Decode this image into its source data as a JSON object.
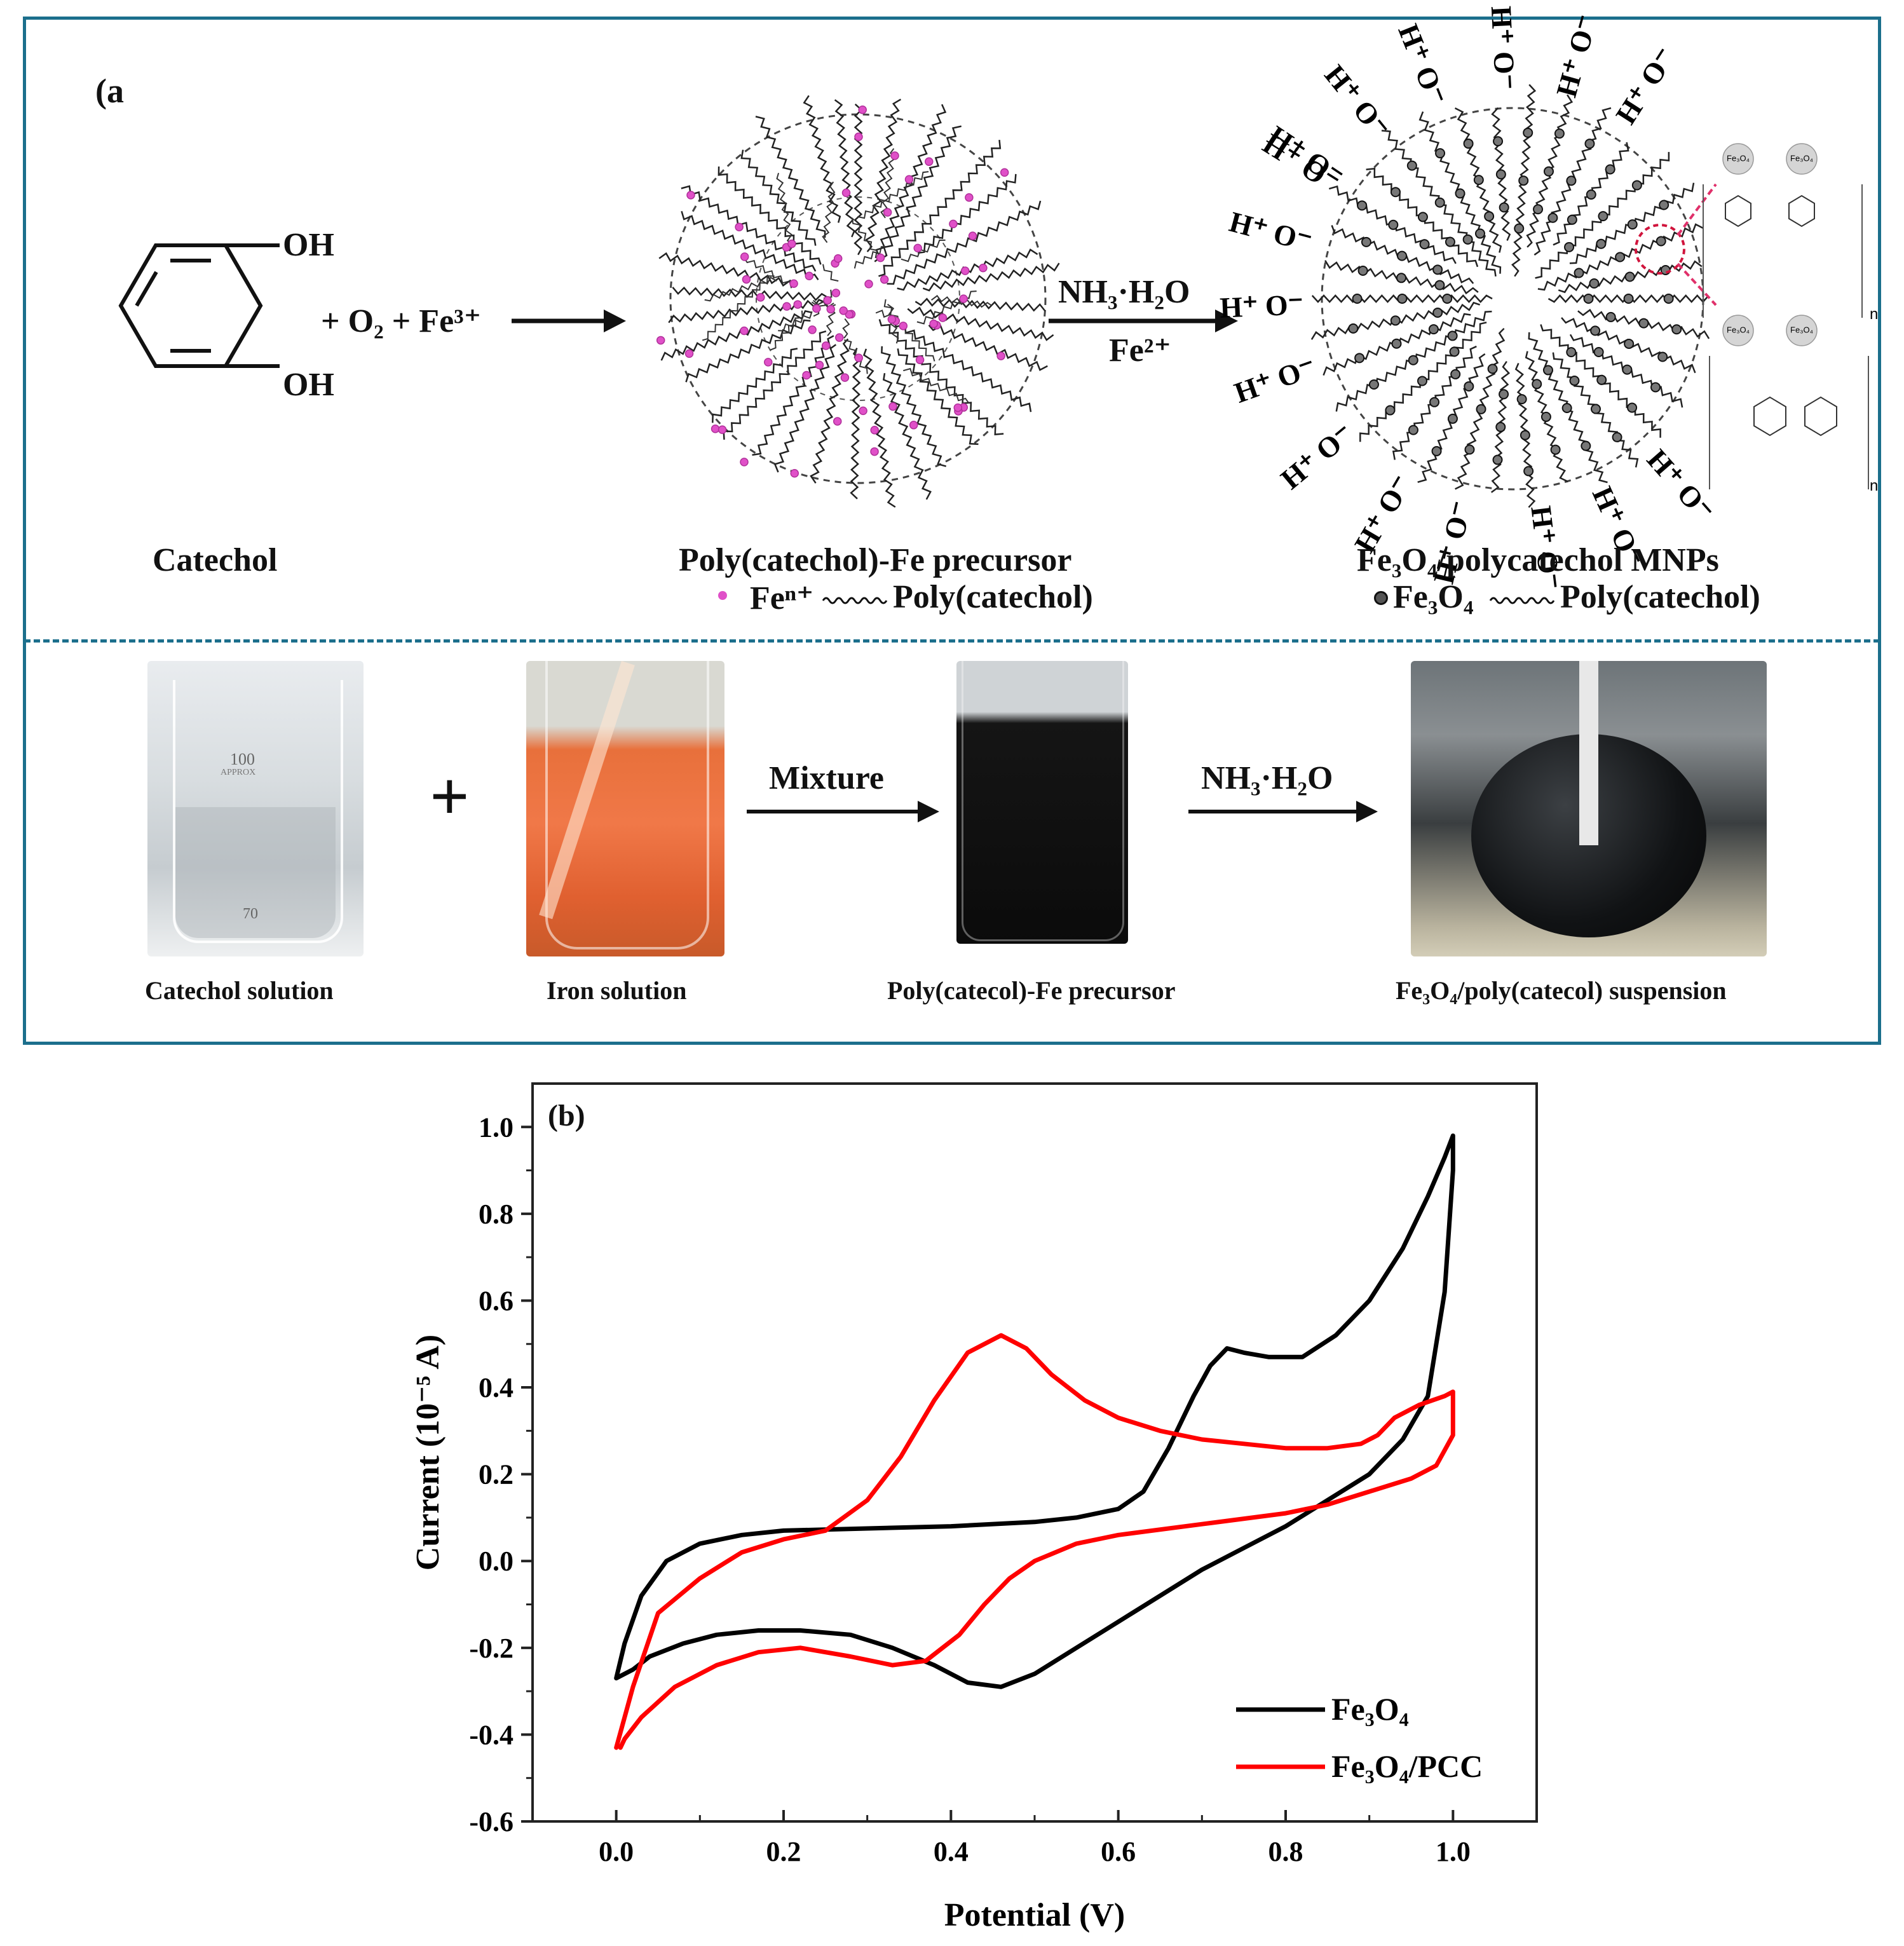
{
  "panel_a": {
    "label": "(a",
    "catechol_oh_top": "OH",
    "catechol_oh_bottom": "OH",
    "reagents": "+ O₂ + Fe³⁺",
    "catechol_name": "Catechol",
    "precursor_name": "Poly(catechol)-Fe precursor",
    "precursor_legend_fe": "Feⁿ⁺",
    "precursor_legend_poly": "Poly(catechol)",
    "arrow2_top": "NH₃·H₂O",
    "arrow2_bottom": "Fe²⁺",
    "mnp_name": "Fe₃O₄/polycatechol MNPs",
    "mnp_legend_fe3o4": "Fe₃O₄",
    "mnp_legend_poly": "Poly(catechol)",
    "surface_group": "H⁺ O⁻",
    "fe3o4_bead_label": "Fe₃O₄",
    "repeat_n": "n",
    "photos": {
      "plus": "+",
      "arrow1": "Mixture",
      "arrow2": "NH₃·H₂O",
      "beaker_marks": [
        "100",
        "APPROX",
        "70"
      ],
      "captions": [
        "Catechol solution",
        "Iron solution",
        "Poly(catecol)-Fe precursor",
        "Fe₃O₄/poly(catecol) suspension"
      ]
    }
  },
  "panel_b": {
    "label": "(b)"
  },
  "colors": {
    "frame": "#1c6f8c",
    "fe_ion": "#e050c8",
    "fe3o4": "#000000",
    "fe3o4_pcc": "#ff0000"
  },
  "chart_data": {
    "type": "line",
    "title": "",
    "xlabel": "Potential (V)",
    "ylabel": "Current (10⁻⁵ A)",
    "xlim": [
      -0.1,
      1.1
    ],
    "ylim": [
      -0.6,
      1.1
    ],
    "xticks": [
      "0.0",
      "0.2",
      "0.4",
      "0.6",
      "0.8",
      "1.0"
    ],
    "yticks": [
      "-0.6",
      "-0.4",
      "-0.2",
      "0.0",
      "0.2",
      "0.4",
      "0.6",
      "0.8",
      "1.0"
    ],
    "legend_position": "bottom-right",
    "series": [
      {
        "name": "Fe₃O₄",
        "color": "#000000",
        "x": [
          0.0,
          0.01,
          0.03,
          0.06,
          0.1,
          0.15,
          0.2,
          0.3,
          0.4,
          0.5,
          0.55,
          0.6,
          0.63,
          0.66,
          0.69,
          0.71,
          0.73,
          0.75,
          0.78,
          0.82,
          0.86,
          0.9,
          0.94,
          0.97,
          0.99,
          1.0,
          1.0,
          0.99,
          0.97,
          0.94,
          0.9,
          0.85,
          0.8,
          0.75,
          0.7,
          0.65,
          0.6,
          0.55,
          0.5,
          0.46,
          0.42,
          0.38,
          0.33,
          0.28,
          0.22,
          0.17,
          0.12,
          0.08,
          0.04,
          0.02,
          0.0
        ],
        "y": [
          -0.27,
          -0.19,
          -0.08,
          0.0,
          0.04,
          0.06,
          0.07,
          0.075,
          0.08,
          0.09,
          0.1,
          0.12,
          0.16,
          0.26,
          0.38,
          0.45,
          0.49,
          0.48,
          0.47,
          0.47,
          0.52,
          0.6,
          0.72,
          0.84,
          0.93,
          0.98,
          0.9,
          0.62,
          0.38,
          0.28,
          0.2,
          0.14,
          0.08,
          0.03,
          -0.02,
          -0.08,
          -0.14,
          -0.2,
          -0.26,
          -0.29,
          -0.28,
          -0.24,
          -0.2,
          -0.17,
          -0.16,
          -0.16,
          -0.17,
          -0.19,
          -0.22,
          -0.25,
          -0.27
        ]
      },
      {
        "name": "Fe₃O₄/PCC",
        "color": "#ff0000",
        "x": [
          0.0,
          0.02,
          0.05,
          0.1,
          0.15,
          0.2,
          0.25,
          0.3,
          0.34,
          0.38,
          0.42,
          0.46,
          0.49,
          0.52,
          0.56,
          0.6,
          0.65,
          0.7,
          0.75,
          0.8,
          0.85,
          0.89,
          0.91,
          0.93,
          0.96,
          0.99,
          1.0,
          1.0,
          0.98,
          0.95,
          0.9,
          0.85,
          0.8,
          0.7,
          0.6,
          0.55,
          0.5,
          0.47,
          0.44,
          0.41,
          0.37,
          0.33,
          0.28,
          0.22,
          0.17,
          0.12,
          0.07,
          0.03,
          0.01,
          0.005
        ],
        "y": [
          -0.43,
          -0.29,
          -0.12,
          -0.04,
          0.02,
          0.05,
          0.07,
          0.14,
          0.24,
          0.37,
          0.48,
          0.52,
          0.49,
          0.43,
          0.37,
          0.33,
          0.3,
          0.28,
          0.27,
          0.26,
          0.26,
          0.27,
          0.29,
          0.33,
          0.36,
          0.38,
          0.39,
          0.29,
          0.22,
          0.19,
          0.16,
          0.13,
          0.11,
          0.085,
          0.06,
          0.04,
          0.0,
          -0.04,
          -0.1,
          -0.17,
          -0.23,
          -0.24,
          -0.22,
          -0.2,
          -0.21,
          -0.24,
          -0.29,
          -0.36,
          -0.41,
          -0.43
        ]
      }
    ]
  }
}
